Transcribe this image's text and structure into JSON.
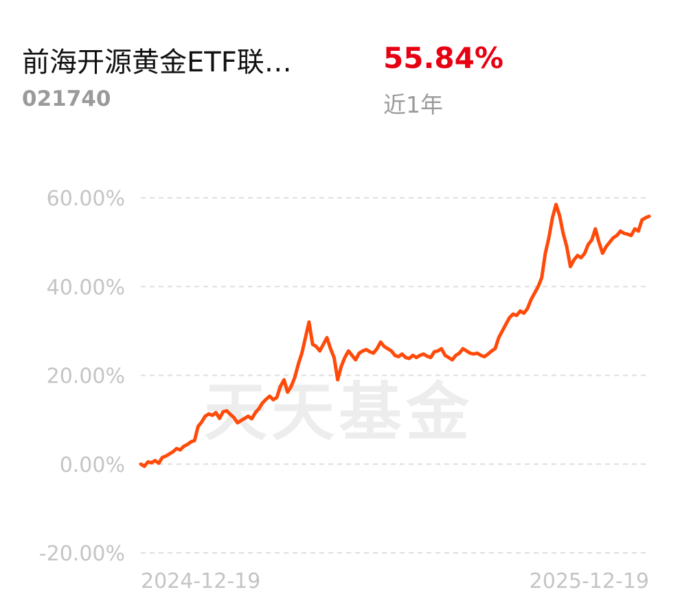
{
  "header": {
    "fund_name": "前海开源黄金ETF联…",
    "fund_code": "021740",
    "return_value": "55.84%",
    "return_period": "近1年"
  },
  "watermark": "天天基金",
  "chart_data": {
    "type": "line",
    "title": "",
    "xlabel": "",
    "ylabel": "",
    "x_tick_labels": [
      "2024-12-19",
      "2025-12-19"
    ],
    "y_ticks": [
      60,
      40,
      20,
      0,
      -20
    ],
    "y_tick_labels": [
      "60.00%",
      "40.00%",
      "20.00%",
      "0.00%",
      "-20.00%"
    ],
    "ylim": [
      -20,
      60
    ],
    "grid": true,
    "line_color": "#ff4a0a",
    "series": [
      {
        "name": "",
        "values": [
          0,
          -0.5,
          0.5,
          0.3,
          0.8,
          0.2,
          1.5,
          1.8,
          2.3,
          2.8,
          3.5,
          3.2,
          4.0,
          4.4,
          5.0,
          5.3,
          8.5,
          9.5,
          10.8,
          11.3,
          11.0,
          11.6,
          10.3,
          11.8,
          12.0,
          11.2,
          10.5,
          9.3,
          9.8,
          10.3,
          10.8,
          10.2,
          11.6,
          12.5,
          13.8,
          14.6,
          15.3,
          14.5,
          15.0,
          17.5,
          19.0,
          16.2,
          17.5,
          19.5,
          22.5,
          25.0,
          28.5,
          32.0,
          27.0,
          26.5,
          25.5,
          27.0,
          28.5,
          26.0,
          24.0,
          19.0,
          22.0,
          24.0,
          25.5,
          24.5,
          23.5,
          25.0,
          25.5,
          25.8,
          25.3,
          25.0,
          26.0,
          27.5,
          26.5,
          26.0,
          25.5,
          24.5,
          24.2,
          24.8,
          24.0,
          23.8,
          24.5,
          24.0,
          24.5,
          24.8,
          24.3,
          24.0,
          25.3,
          25.5,
          26.0,
          24.5,
          24.0,
          23.5,
          24.5,
          25.0,
          26.0,
          25.5,
          25.0,
          24.8,
          25.0,
          24.5,
          24.2,
          24.8,
          25.5,
          26.0,
          28.5,
          30.0,
          31.5,
          33.0,
          33.8,
          33.5,
          34.5,
          34.0,
          35.0,
          37.0,
          38.5,
          40.0,
          42.0,
          47.5,
          51.0,
          55.5,
          58.5,
          56.0,
          52.0,
          49.0,
          44.5,
          46.0,
          47.0,
          46.5,
          47.5,
          49.5,
          50.5,
          53.0,
          50.0,
          47.5,
          49.0,
          50.0,
          51.0,
          51.5,
          52.5,
          52.0,
          51.8,
          51.5,
          53.0,
          52.5,
          55.0,
          55.5,
          55.84
        ]
      }
    ]
  }
}
